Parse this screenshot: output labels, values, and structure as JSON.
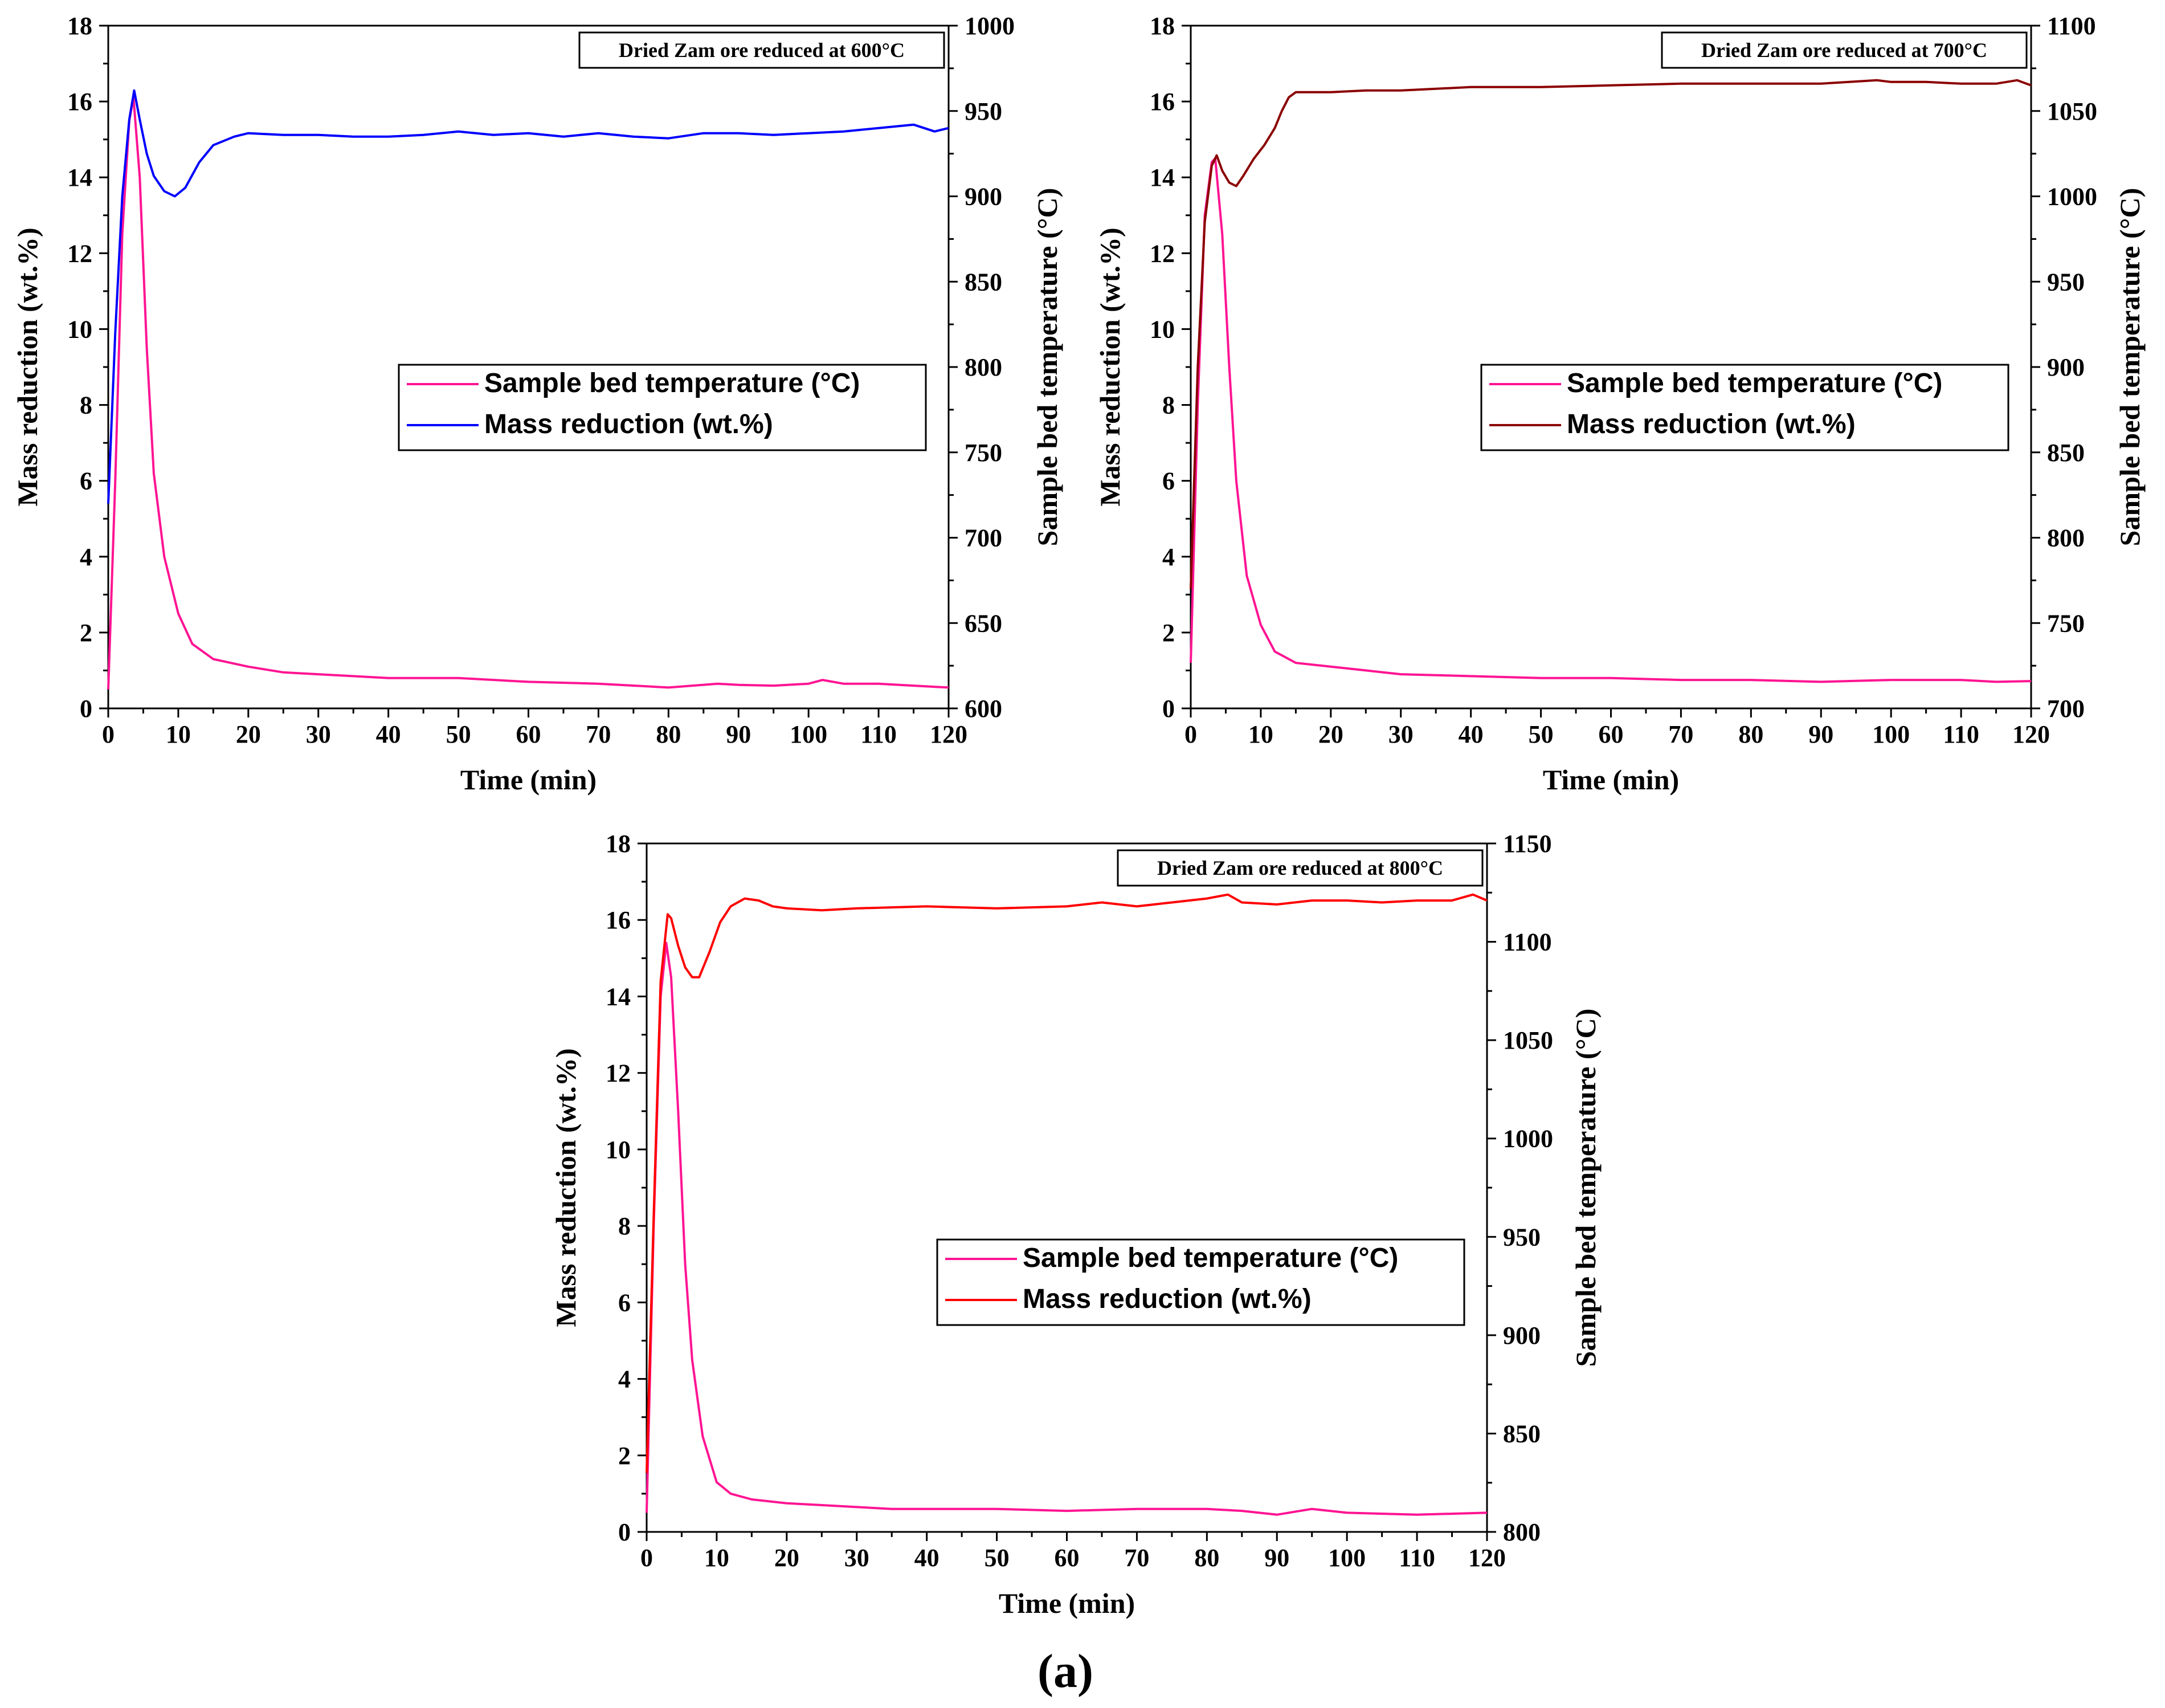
{
  "figure": {
    "caption": "(a)"
  },
  "chart_data": [
    {
      "type": "line",
      "annotation": "Dried Zam ore reduced at 600°C",
      "xlabel": "Time (min)",
      "ylabel": "Mass reduction (wt.%)",
      "y2label": "Sample bed temperature (°C)",
      "xlim": [
        0,
        120
      ],
      "ylim": [
        0,
        18
      ],
      "y2lim": [
        600,
        1000
      ],
      "xticks": [
        0,
        10,
        20,
        30,
        40,
        50,
        60,
        70,
        80,
        90,
        100,
        110,
        120
      ],
      "yticks": [
        0,
        2,
        4,
        6,
        8,
        10,
        12,
        14,
        16,
        18
      ],
      "y2ticks": [
        600,
        650,
        700,
        750,
        800,
        850,
        900,
        950,
        1000
      ],
      "legend_position": "center-right",
      "series": [
        {
          "name": "Sample bed temperature (°C)",
          "axis": "left",
          "color": "#ff1493",
          "x": [
            0,
            1,
            2,
            3,
            3.6,
            4.5,
            5.5,
            6.5,
            8,
            10,
            12,
            15,
            20,
            25,
            30,
            40,
            50,
            60,
            70,
            80,
            87,
            90,
            95,
            100,
            102,
            105,
            110,
            115,
            120
          ],
          "y": [
            0.5,
            6,
            12.5,
            15.5,
            16.1,
            14,
            9.5,
            6.2,
            4,
            2.5,
            1.7,
            1.3,
            1.1,
            0.95,
            0.9,
            0.8,
            0.8,
            0.7,
            0.65,
            0.55,
            0.65,
            0.62,
            0.6,
            0.65,
            0.75,
            0.65,
            0.65,
            0.6,
            0.55
          ]
        },
        {
          "name": "Mass reduction (wt.%)",
          "axis": "right",
          "color": "#0000ff",
          "x": [
            0,
            1,
            2,
            3,
            3.7,
            4.5,
            5.5,
            6.5,
            8,
            9.5,
            11,
            13,
            15,
            18,
            20,
            25,
            30,
            35,
            40,
            45,
            50,
            55,
            60,
            65,
            70,
            75,
            80,
            85,
            90,
            95,
            100,
            105,
            110,
            115,
            118,
            120
          ],
          "y": [
            720,
            820,
            900,
            945,
            962,
            945,
            925,
            912,
            903,
            900,
            905,
            920,
            930,
            935,
            937,
            936,
            936,
            935,
            935,
            936,
            938,
            936,
            937,
            935,
            937,
            935,
            934,
            937,
            937,
            936,
            937,
            938,
            940,
            942,
            938,
            940
          ]
        }
      ]
    },
    {
      "type": "line",
      "annotation": "Dried Zam ore reduced at 700°C",
      "xlabel": "Time (min)",
      "ylabel": "Mass reduction (wt.%)",
      "y2label": "Sample bed temperature (°C)",
      "xlim": [
        0,
        120
      ],
      "ylim": [
        0,
        18
      ],
      "y2lim": [
        700,
        1100
      ],
      "xticks": [
        0,
        10,
        20,
        30,
        40,
        50,
        60,
        70,
        80,
        90,
        100,
        110,
        120
      ],
      "yticks": [
        0,
        2,
        4,
        6,
        8,
        10,
        12,
        14,
        16,
        18
      ],
      "y2ticks": [
        700,
        750,
        800,
        850,
        900,
        950,
        1000,
        1050,
        1100
      ],
      "legend_position": "center-right",
      "series": [
        {
          "name": "Sample bed temperature (°C)",
          "axis": "left",
          "color": "#ff1493",
          "x": [
            0,
            1,
            2,
            3,
            3.5,
            4.5,
            5.5,
            6.5,
            8,
            10,
            12,
            15,
            20,
            25,
            30,
            40,
            50,
            60,
            70,
            80,
            90,
            100,
            110,
            115,
            120
          ],
          "y": [
            1.2,
            8,
            13,
            14.4,
            14.5,
            12.5,
            9,
            6,
            3.5,
            2.2,
            1.5,
            1.2,
            1.1,
            1.0,
            0.9,
            0.85,
            0.8,
            0.8,
            0.75,
            0.75,
            0.7,
            0.75,
            0.75,
            0.7,
            0.72
          ]
        },
        {
          "name": "Mass reduction (wt.%)",
          "axis": "right",
          "color": "#8b0000",
          "x": [
            0,
            1,
            2,
            3,
            3.7,
            4.5,
            5.5,
            6.5,
            7.5,
            9,
            10.5,
            12,
            13,
            14,
            15,
            16,
            18,
            20,
            25,
            30,
            40,
            50,
            60,
            70,
            80,
            90,
            98,
            100,
            105,
            110,
            115,
            118,
            120
          ],
          "y": [
            770,
            900,
            985,
            1018,
            1024,
            1015,
            1008,
            1006,
            1012,
            1022,
            1030,
            1040,
            1050,
            1058,
            1061,
            1061,
            1061,
            1061,
            1062,
            1062,
            1064,
            1064,
            1065,
            1066,
            1066,
            1066,
            1068,
            1067,
            1067,
            1066,
            1066,
            1068,
            1065
          ]
        }
      ]
    },
    {
      "type": "line",
      "annotation": "Dried Zam ore reduced at 800°C",
      "xlabel": "Time (min)",
      "ylabel": "Mass reduction (wt.%)",
      "y2label": "Sample bed temperature (°C)",
      "xlim": [
        0,
        120
      ],
      "ylim": [
        0,
        18
      ],
      "y2lim": [
        800,
        1150
      ],
      "xticks": [
        0,
        10,
        20,
        30,
        40,
        50,
        60,
        70,
        80,
        90,
        100,
        110,
        120
      ],
      "yticks": [
        0,
        2,
        4,
        6,
        8,
        10,
        12,
        14,
        16,
        18
      ],
      "y2ticks": [
        800,
        850,
        900,
        950,
        1000,
        1050,
        1100,
        1150
      ],
      "legend_position": "center-right",
      "series": [
        {
          "name": "Sample bed temperature (°C)",
          "axis": "left",
          "color": "#ff1493",
          "x": [
            0,
            1,
            2,
            2.8,
            3.5,
            4.5,
            5.5,
            6.5,
            8,
            10,
            12,
            15,
            20,
            25,
            30,
            35,
            40,
            50,
            60,
            70,
            80,
            85,
            90,
            95,
            100,
            110,
            120
          ],
          "y": [
            0.5,
            8,
            14,
            15.4,
            14.5,
            11,
            7,
            4.5,
            2.5,
            1.3,
            1.0,
            0.85,
            0.75,
            0.7,
            0.65,
            0.6,
            0.6,
            0.6,
            0.55,
            0.6,
            0.6,
            0.55,
            0.45,
            0.6,
            0.5,
            0.45,
            0.5
          ]
        },
        {
          "name": "Mass reduction (wt.%)",
          "axis": "right",
          "color": "#ff0000",
          "x": [
            0,
            1,
            2,
            3,
            3.5,
            4.5,
            5.5,
            6.5,
            7.5,
            9,
            10.5,
            12,
            14,
            16,
            18,
            20,
            25,
            30,
            40,
            50,
            60,
            65,
            70,
            75,
            80,
            83,
            85,
            90,
            95,
            100,
            105,
            110,
            115,
            118,
            120
          ],
          "y": [
            830,
            960,
            1080,
            1114,
            1112,
            1098,
            1087,
            1082,
            1082,
            1095,
            1110,
            1118,
            1122,
            1121,
            1118,
            1117,
            1116,
            1117,
            1118,
            1117,
            1118,
            1120,
            1118,
            1120,
            1122,
            1124,
            1120,
            1119,
            1121,
            1121,
            1120,
            1121,
            1121,
            1124,
            1121
          ]
        }
      ]
    }
  ]
}
